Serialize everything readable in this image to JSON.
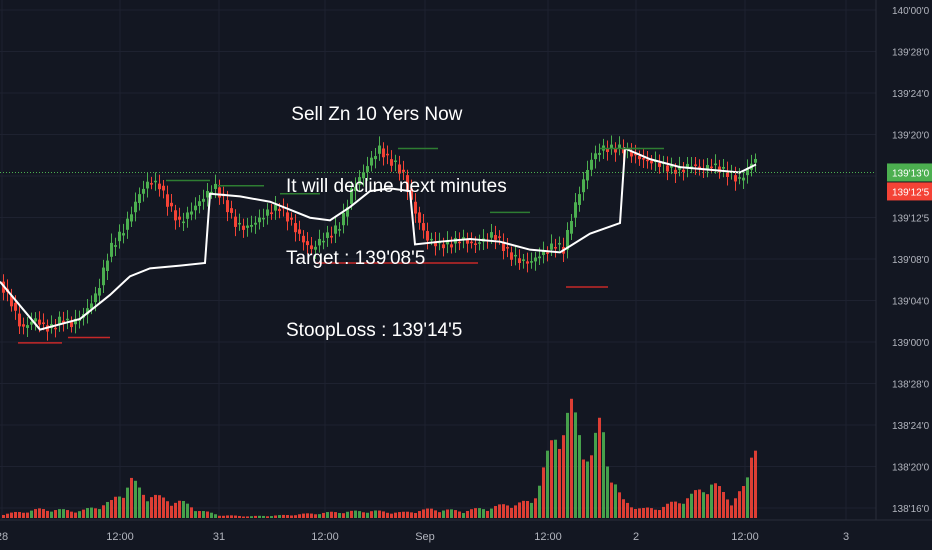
{
  "annotation": {
    "line1": " Sell Zn 10 Yers Now",
    "line2": "It will decline next minutes",
    "line3": "Target : 139'08'5",
    "line4": "StoopLoss : 139'14'5"
  },
  "colors": {
    "background": "#131722",
    "up": "#4caf50",
    "down": "#f44336",
    "moving_average": "#ffffff",
    "resistance": "#2e7d32",
    "support": "#c62828",
    "grid": "#1e2230",
    "axis_text": "#b2b5be"
  },
  "price_badges": {
    "current": "139'13'0",
    "second": "139'12'5"
  },
  "chart_data": {
    "type": "candlestick",
    "symbol": "ZN (10-Year T-Note futures)",
    "y_axis": {
      "labels": [
        "140'00'0",
        "139'28'0",
        "139'24'0",
        "139'20'0",
        "139'16'0",
        "139'12'5",
        "139'08'0",
        "139'04'0",
        "139'00'0",
        "138'28'0",
        "138'24'0",
        "138'20'0",
        "138'16'0"
      ],
      "range": [
        138.15,
        140.02
      ]
    },
    "x_axis": {
      "labels": [
        "28",
        "12:00",
        "31",
        "12:00",
        "Sep",
        "12:00",
        "2",
        "12:00",
        "3"
      ],
      "label_index": [
        2,
        120,
        219,
        325,
        425,
        548,
        636,
        745,
        846
      ]
    },
    "price_points": [
      [
        0,
        139.0
      ],
      [
        12,
        138.92
      ],
      [
        22,
        138.82
      ],
      [
        35,
        138.86
      ],
      [
        50,
        138.82
      ],
      [
        62,
        138.86
      ],
      [
        72,
        138.84
      ],
      [
        85,
        138.88
      ],
      [
        98,
        138.96
      ],
      [
        110,
        139.12
      ],
      [
        125,
        139.2
      ],
      [
        140,
        139.33
      ],
      [
        150,
        139.38
      ],
      [
        160,
        139.36
      ],
      [
        170,
        139.28
      ],
      [
        180,
        139.22
      ],
      [
        190,
        139.26
      ],
      [
        205,
        139.32
      ],
      [
        215,
        139.36
      ],
      [
        225,
        139.3
      ],
      [
        235,
        139.22
      ],
      [
        245,
        139.2
      ],
      [
        255,
        139.22
      ],
      [
        268,
        139.26
      ],
      [
        280,
        139.28
      ],
      [
        292,
        139.22
      ],
      [
        302,
        139.16
      ],
      [
        312,
        139.12
      ],
      [
        322,
        139.16
      ],
      [
        332,
        139.18
      ],
      [
        342,
        139.22
      ],
      [
        352,
        139.34
      ],
      [
        362,
        139.4
      ],
      [
        372,
        139.46
      ],
      [
        380,
        139.5
      ],
      [
        388,
        139.46
      ],
      [
        396,
        139.44
      ],
      [
        404,
        139.4
      ],
      [
        412,
        139.3
      ],
      [
        420,
        139.22
      ],
      [
        428,
        139.16
      ],
      [
        438,
        139.14
      ],
      [
        450,
        139.14
      ],
      [
        462,
        139.16
      ],
      [
        474,
        139.14
      ],
      [
        486,
        139.16
      ],
      [
        494,
        139.18
      ],
      [
        502,
        139.14
      ],
      [
        510,
        139.1
      ],
      [
        520,
        139.08
      ],
      [
        530,
        139.07
      ],
      [
        540,
        139.1
      ],
      [
        548,
        139.12
      ],
      [
        556,
        139.14
      ],
      [
        564,
        139.12
      ],
      [
        572,
        139.24
      ],
      [
        582,
        139.36
      ],
      [
        592,
        139.46
      ],
      [
        602,
        139.5
      ],
      [
        612,
        139.5
      ],
      [
        622,
        139.5
      ],
      [
        632,
        139.48
      ],
      [
        642,
        139.46
      ],
      [
        652,
        139.45
      ],
      [
        662,
        139.44
      ],
      [
        672,
        139.42
      ],
      [
        682,
        139.42
      ],
      [
        692,
        139.44
      ],
      [
        702,
        139.42
      ],
      [
        712,
        139.44
      ],
      [
        722,
        139.42
      ],
      [
        732,
        139.4
      ],
      [
        740,
        139.38
      ],
      [
        748,
        139.42
      ],
      [
        754,
        139.46
      ]
    ],
    "moving_average": [
      [
        0,
        139.0
      ],
      [
        40,
        138.82
      ],
      [
        80,
        138.86
      ],
      [
        110,
        138.95
      ],
      [
        130,
        139.02
      ],
      [
        150,
        139.05
      ],
      [
        180,
        139.06
      ],
      [
        205,
        139.07
      ],
      [
        210,
        139.33
      ],
      [
        240,
        139.32
      ],
      [
        270,
        139.3
      ],
      [
        290,
        139.27
      ],
      [
        310,
        139.24
      ],
      [
        330,
        139.23
      ],
      [
        350,
        139.28
      ],
      [
        370,
        139.34
      ],
      [
        390,
        139.35
      ],
      [
        410,
        139.34
      ],
      [
        415,
        139.14
      ],
      [
        440,
        139.15
      ],
      [
        470,
        139.16
      ],
      [
        500,
        139.15
      ],
      [
        530,
        139.12
      ],
      [
        560,
        139.11
      ],
      [
        590,
        139.18
      ],
      [
        620,
        139.22
      ],
      [
        625,
        139.5
      ],
      [
        650,
        139.46
      ],
      [
        680,
        139.43
      ],
      [
        710,
        139.42
      ],
      [
        740,
        139.41
      ],
      [
        756,
        139.44
      ]
    ],
    "volume_points": [
      [
        0,
        4
      ],
      [
        40,
        10
      ],
      [
        80,
        8
      ],
      [
        110,
        18
      ],
      [
        130,
        42
      ],
      [
        140,
        30
      ],
      [
        160,
        22
      ],
      [
        180,
        18
      ],
      [
        200,
        8
      ],
      [
        220,
        3
      ],
      [
        250,
        2
      ],
      [
        280,
        3
      ],
      [
        310,
        5
      ],
      [
        340,
        7
      ],
      [
        370,
        8
      ],
      [
        400,
        6
      ],
      [
        430,
        10
      ],
      [
        460,
        8
      ],
      [
        490,
        12
      ],
      [
        510,
        16
      ],
      [
        530,
        18
      ],
      [
        550,
        80
      ],
      [
        560,
        110
      ],
      [
        570,
        120
      ],
      [
        580,
        90
      ],
      [
        590,
        70
      ],
      [
        600,
        110
      ],
      [
        610,
        50
      ],
      [
        620,
        20
      ],
      [
        640,
        10
      ],
      [
        660,
        12
      ],
      [
        690,
        25
      ],
      [
        710,
        40
      ],
      [
        730,
        20
      ],
      [
        745,
        35
      ],
      [
        754,
        110
      ]
    ],
    "resistance_lines": [
      {
        "x1": 398,
        "x2": 438,
        "price": 139.5
      },
      {
        "x1": 166,
        "x2": 210,
        "price": 139.38
      },
      {
        "x1": 218,
        "x2": 264,
        "price": 139.36
      },
      {
        "x1": 280,
        "x2": 320,
        "price": 139.33
      },
      {
        "x1": 490,
        "x2": 530,
        "price": 139.26
      },
      {
        "x1": 600,
        "x2": 640,
        "price": 139.5
      },
      {
        "x1": 622,
        "x2": 664,
        "price": 139.5
      }
    ],
    "support_lines": [
      {
        "x1": 18,
        "x2": 62,
        "price": 138.77
      },
      {
        "x1": 68,
        "x2": 110,
        "price": 138.79
      },
      {
        "x1": 316,
        "x2": 478,
        "price": 139.07
      },
      {
        "x1": 566,
        "x2": 608,
        "price": 138.98
      }
    ],
    "current_price_line": 139.41
  }
}
